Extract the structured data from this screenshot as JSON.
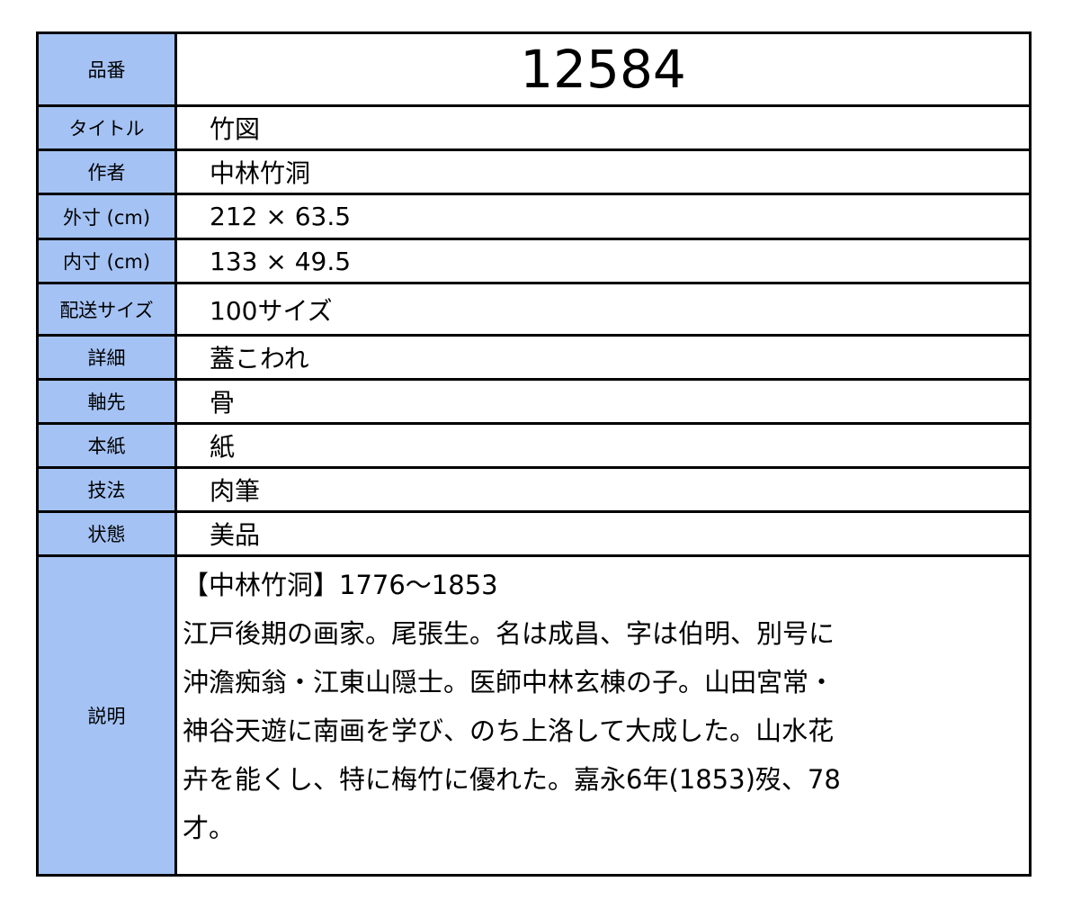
{
  "label_color": "#a4c2f4",
  "rows": [
    {
      "label": "品番",
      "value": "12584"
    },
    {
      "label": "タイトル",
      "value": "竹図"
    },
    {
      "label": "作者",
      "value": "中林竹洞"
    },
    {
      "label": "外寸 (cm)",
      "value": "212 × 63.5"
    },
    {
      "label": "内寸 (cm)",
      "value": "133 × 49.5"
    },
    {
      "label": "配送サイズ",
      "value": "100サイズ"
    },
    {
      "label": "詳細",
      "value": "蓋こわれ"
    },
    {
      "label": "軸先",
      "value": "骨"
    },
    {
      "label": "本紙",
      "value": "紙"
    },
    {
      "label": "技法",
      "value": "肉筆"
    },
    {
      "label": "状態",
      "value": "美品"
    }
  ],
  "description": {
    "label": "説明",
    "lines": [
      "【中林竹洞】1776～1853",
      "江戸後期の画家。尾張生。名は成昌、字は伯明、別号に",
      "沖澹痴翁・江東山隠士。医師中林玄棟の子。山田宮常・",
      "神谷天遊に南画を学び、のち上洛して大成した。山水花",
      "卉を能くし、特に梅竹に優れた。嘉永6年(1853)歿、78",
      "才。"
    ]
  }
}
